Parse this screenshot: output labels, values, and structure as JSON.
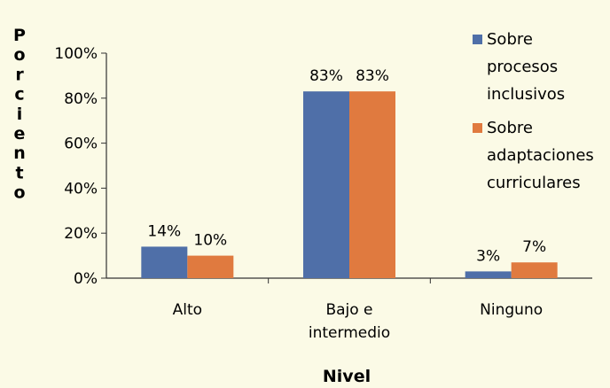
{
  "chart_data": {
    "type": "bar",
    "ylabel": "Por ciento",
    "xlabel": "Nivel",
    "categories": [
      [
        "Alto"
      ],
      [
        "Bajo e",
        "intermedio"
      ],
      [
        "Ninguno"
      ]
    ],
    "ylim": [
      0,
      100
    ],
    "y_ticks": [
      "0%",
      "20%",
      "40%",
      "60%",
      "80%",
      "100%"
    ],
    "y_tick_values": [
      0,
      20,
      40,
      60,
      80,
      100
    ],
    "grid": false,
    "legend_position": "right",
    "series": [
      {
        "name": [
          "Sobre",
          "procesos",
          "inclusivos"
        ],
        "values": [
          14,
          83,
          3
        ],
        "labels": [
          "14%",
          "83%",
          "3%"
        ],
        "color": "#4f6fa8"
      },
      {
        "name": [
          "Sobre",
          "adaptaciones",
          "curriculares"
        ],
        "values": [
          10,
          83,
          7
        ],
        "labels": [
          "10%",
          "83%",
          "7%"
        ],
        "color": "#e07a3f"
      }
    ]
  }
}
